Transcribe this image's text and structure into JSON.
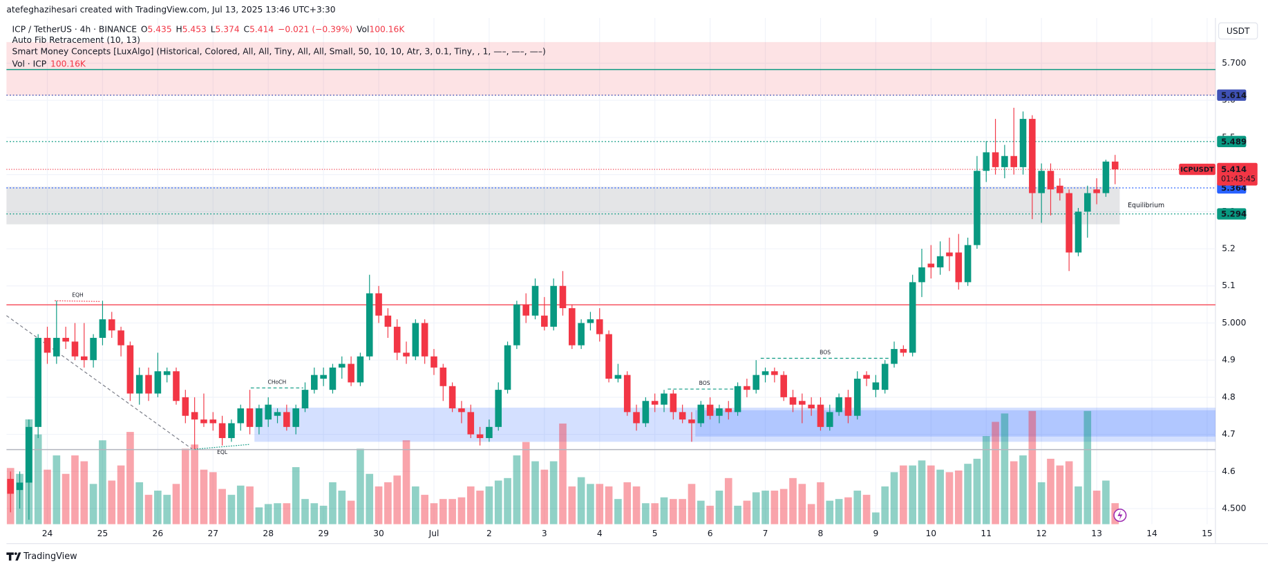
{
  "header": {
    "author_line": "atefeghazihesari created with TradingView.com, Jul 13, 2025 13:46 UTC+3:30",
    "symbol": "ICP / TetherUS · 4h · BINANCE",
    "o_label": "O",
    "h_label": "H",
    "l_label": "L",
    "c_label": "C",
    "change": "−0.021 (−0.39%)",
    "vol_label": "Vol",
    "vol_value": "100.16K",
    "indicators": [
      "Auto Fib Retracement (10, 13)",
      "Smart Money Concepts [LuxAlgo] (Historical, Colored, All, All, Tiny, All, All, Small, 50, 10, 10, Atr, 3, 0.1, Tiny, , 1, —–, —–, —–)"
    ],
    "vol_indicator": "Vol · ICP",
    "vol_indicator_value": "100.16K"
  },
  "chart_data": {
    "type": "candlestick",
    "currency": "USDT",
    "up_color": "#089981",
    "down_color": "#f23645",
    "open": [
      4.58,
      4.55,
      4.57,
      4.72,
      4.96,
      4.91,
      4.96,
      4.95,
      4.91,
      4.9,
      4.96,
      5.01,
      4.98,
      4.94,
      4.81,
      4.86,
      4.81,
      4.86,
      4.87,
      4.8,
      4.76,
      4.74,
      4.74,
      4.73,
      4.69,
      4.73,
      4.77,
      4.72,
      4.74,
      4.75,
      4.76,
      4.72,
      4.77,
      4.82,
      4.85,
      4.82,
      4.88,
      4.89,
      4.84,
      4.91,
      5.08,
      5.02,
      4.99,
      4.92,
      4.91,
      5.0,
      4.91,
      4.88,
      4.83,
      4.77,
      4.76,
      4.7,
      4.69,
      4.72,
      4.82,
      4.94,
      5.05,
      5.02,
      5.02,
      4.99,
      5.1,
      5.04,
      4.94,
      5.0,
      5.01,
      4.97,
      4.85,
      4.86,
      4.76,
      4.73,
      4.79,
      4.78,
      4.81,
      4.76,
      4.74,
      4.73,
      4.78,
      4.75,
      4.77,
      4.76,
      4.83,
      4.82,
      4.86,
      4.87,
      4.86,
      4.8,
      4.79,
      4.78,
      4.78,
      4.72,
      4.76,
      4.8,
      4.75,
      4.86,
      4.82,
      4.82,
      4.89,
      4.93,
      4.92,
      5.11,
      5.16,
      5.15,
      5.19,
      5.19,
      5.11,
      5.21,
      5.41,
      5.46,
      5.42,
      5.45,
      5.42,
      5.55,
      5.35,
      5.41,
      5.37,
      5.35,
      5.19,
      5.3,
      5.36,
      5.35,
      5.435
    ],
    "high": [
      4.6,
      4.6,
      4.74,
      4.97,
      4.99,
      5.06,
      4.99,
      5.0,
      5.0,
      4.97,
      5.06,
      5.03,
      4.99,
      4.95,
      4.88,
      4.88,
      4.92,
      4.88,
      4.88,
      4.82,
      4.8,
      4.81,
      4.76,
      4.75,
      4.74,
      4.78,
      4.82,
      4.78,
      4.8,
      4.77,
      4.78,
      4.78,
      4.84,
      4.88,
      4.88,
      4.89,
      4.91,
      4.91,
      4.92,
      5.13,
      5.1,
      5.04,
      5.01,
      4.95,
      5.01,
      5.01,
      4.93,
      4.89,
      4.84,
      4.79,
      4.78,
      4.72,
      4.74,
      4.84,
      4.95,
      5.06,
      5.08,
      5.12,
      5.07,
      5.12,
      5.14,
      5.05,
      5.01,
      5.03,
      5.04,
      4.98,
      4.89,
      4.87,
      4.78,
      4.8,
      4.81,
      4.82,
      4.82,
      4.78,
      4.76,
      4.79,
      4.8,
      4.78,
      4.79,
      4.84,
      4.85,
      4.9,
      4.88,
      4.88,
      4.87,
      4.82,
      4.81,
      4.8,
      4.8,
      4.78,
      4.81,
      4.82,
      4.87,
      4.87,
      4.86,
      4.9,
      4.95,
      4.94,
      5.13,
      5.2,
      5.21,
      5.22,
      5.23,
      5.24,
      5.23,
      5.45,
      5.49,
      5.55,
      5.48,
      5.58,
      5.57,
      5.56,
      5.43,
      5.43,
      5.39,
      5.36,
      5.31,
      5.37,
      5.39,
      5.44,
      5.453
    ],
    "low": [
      4.49,
      4.5,
      4.47,
      4.69,
      4.89,
      4.89,
      4.93,
      4.9,
      4.88,
      4.88,
      4.94,
      4.96,
      4.91,
      4.79,
      4.78,
      4.79,
      4.8,
      4.84,
      4.78,
      4.73,
      4.66,
      4.72,
      4.71,
      4.67,
      4.68,
      4.71,
      4.7,
      4.7,
      4.72,
      4.73,
      4.71,
      4.7,
      4.76,
      4.81,
      4.83,
      4.81,
      4.85,
      4.83,
      4.83,
      4.9,
      5.0,
      4.96,
      4.9,
      4.89,
      4.9,
      4.89,
      4.86,
      4.79,
      4.76,
      4.73,
      4.69,
      4.67,
      4.68,
      4.71,
      4.81,
      4.93,
      5.0,
      5.01,
      4.98,
      4.98,
      5.02,
      4.93,
      4.93,
      4.98,
      4.95,
      4.84,
      4.84,
      4.75,
      4.71,
      4.72,
      4.76,
      4.76,
      4.74,
      4.73,
      4.68,
      4.72,
      4.74,
      4.73,
      4.74,
      4.75,
      4.8,
      4.81,
      4.84,
      4.84,
      4.79,
      4.76,
      4.73,
      4.75,
      4.71,
      4.71,
      4.75,
      4.73,
      4.74,
      4.83,
      4.8,
      4.81,
      4.88,
      4.91,
      4.91,
      5.07,
      5.12,
      5.13,
      5.14,
      5.09,
      5.1,
      5.2,
      5.38,
      5.4,
      5.39,
      5.4,
      5.4,
      5.28,
      5.27,
      5.29,
      5.33,
      5.14,
      5.18,
      5.23,
      5.32,
      5.34,
      5.374
    ],
    "close": [
      4.54,
      4.57,
      4.72,
      4.96,
      4.92,
      4.96,
      4.95,
      4.91,
      4.9,
      4.96,
      5.01,
      4.98,
      4.94,
      4.81,
      4.86,
      4.81,
      4.87,
      4.87,
      4.79,
      4.75,
      4.74,
      4.73,
      4.73,
      4.69,
      4.73,
      4.77,
      4.72,
      4.77,
      4.78,
      4.76,
      4.72,
      4.77,
      4.82,
      4.86,
      4.86,
      4.88,
      4.89,
      4.84,
      4.91,
      5.08,
      5.02,
      4.99,
      4.92,
      4.91,
      5.0,
      4.91,
      4.88,
      4.83,
      4.77,
      4.76,
      4.7,
      4.69,
      4.72,
      4.82,
      4.94,
      5.05,
      5.02,
      5.1,
      4.99,
      5.1,
      5.04,
      4.94,
      5.0,
      5.01,
      4.97,
      4.85,
      4.86,
      4.76,
      4.73,
      4.79,
      4.78,
      4.81,
      4.76,
      4.74,
      4.73,
      4.78,
      4.75,
      4.77,
      4.76,
      4.83,
      4.82,
      4.86,
      4.87,
      4.86,
      4.8,
      4.78,
      4.78,
      4.77,
      4.72,
      4.76,
      4.8,
      4.75,
      4.85,
      4.85,
      4.84,
      4.89,
      4.93,
      4.92,
      5.11,
      5.15,
      5.15,
      5.18,
      5.18,
      5.11,
      5.21,
      5.41,
      5.46,
      5.42,
      5.45,
      5.42,
      5.55,
      5.35,
      5.41,
      5.36,
      5.35,
      5.19,
      5.3,
      5.35,
      5.35,
      5.435,
      5.414
    ],
    "volume": [
      268,
      240,
      500,
      428,
      260,
      328,
      240,
      328,
      300,
      192,
      400,
      208,
      280,
      440,
      200,
      140,
      160,
      140,
      192,
      360,
      380,
      260,
      248,
      168,
      140,
      184,
      180,
      80,
      96,
      100,
      100,
      272,
      120,
      100,
      88,
      200,
      160,
      112,
      360,
      240,
      180,
      200,
      232,
      400,
      180,
      140,
      100,
      120,
      120,
      128,
      180,
      160,
      180,
      208,
      220,
      328,
      392,
      300,
      260,
      300,
      480,
      180,
      224,
      192,
      192,
      180,
      120,
      200,
      180,
      100,
      100,
      128,
      120,
      120,
      192,
      112,
      88,
      160,
      220,
      88,
      112,
      152,
      160,
      160,
      168,
      220,
      192,
      96,
      200,
      112,
      120,
      128,
      160,
      140,
      56,
      180,
      248,
      280,
      280,
      304,
      280,
      260,
      248,
      256,
      288,
      312,
      420,
      488,
      528,
      300,
      328,
      540,
      200,
      312,
      280,
      300,
      180,
      540,
      160,
      208,
      100.16
    ],
    "xlim": [
      -0.44,
      130.9
    ],
    "xticks": [
      {
        "value": 4,
        "label": "24"
      },
      {
        "value": 10,
        "label": "25"
      },
      {
        "value": 16,
        "label": "26"
      },
      {
        "value": 22,
        "label": "27"
      },
      {
        "value": 28,
        "label": "28"
      },
      {
        "value": 34,
        "label": "29"
      },
      {
        "value": 40,
        "label": "30"
      },
      {
        "value": 46,
        "label": "Jul"
      },
      {
        "value": 52,
        "label": "2"
      },
      {
        "value": 58,
        "label": "3"
      },
      {
        "value": 64,
        "label": "4"
      },
      {
        "value": 70,
        "label": "5"
      },
      {
        "value": 76,
        "label": "6"
      },
      {
        "value": 82,
        "label": "7"
      },
      {
        "value": 88,
        "label": "8"
      },
      {
        "value": 94,
        "label": "9"
      },
      {
        "value": 100,
        "label": "10"
      },
      {
        "value": 106,
        "label": "11"
      },
      {
        "value": 112,
        "label": "12"
      },
      {
        "value": 118,
        "label": "13"
      },
      {
        "value": 124,
        "label": "14"
      },
      {
        "value": 130,
        "label": "15"
      }
    ],
    "ylim": [
      4.458,
      5.822
    ],
    "yticks": [
      {
        "value": 4.5,
        "label": "4.500"
      },
      4.6,
      4.7,
      4.8,
      4.9,
      {
        "value": 5,
        "label": "5.000"
      },
      5.1,
      5.2,
      5.3,
      5.4,
      5.5,
      5.6,
      {
        "value": 5.7,
        "label": "5.700"
      }
    ],
    "grid": true,
    "zones": [
      {
        "y": [
          5.613,
          5.757
        ],
        "x": [
          -0.44,
          130.9
        ],
        "color": "rgba(242,54,69,0.14)"
      },
      {
        "y": [
          5.266,
          5.367
        ],
        "x": [
          -0.44,
          120.5
        ],
        "color": "rgba(120,123,134,0.2)",
        "label": "Equilibrium"
      },
      {
        "y": [
          4.68,
          4.772
        ],
        "x": [
          26.5,
          130.9
        ],
        "color": "rgba(41,98,255,0.2)"
      },
      {
        "y": [
          4.694,
          4.765
        ],
        "x": [
          74.4,
          130.9
        ],
        "color": "rgba(41,98,255,0.2)"
      }
    ],
    "lines": [
      {
        "value": 5.683,
        "color": "#089981"
      },
      {
        "value": 5.049,
        "color": "#f7525f"
      },
      {
        "value": 4.659,
        "color": "#b2b5be"
      }
    ],
    "price_levels": [
      {
        "value": 5.614,
        "color": "#3f51b5"
      },
      {
        "value": 5.489,
        "color": "#089981"
      },
      {
        "value": 5.364,
        "color": "#2962ff"
      },
      {
        "value": 5.294,
        "color": "#089981"
      }
    ],
    "structures": [
      {
        "label": "EQH",
        "x": [
          4.8,
          9.8
        ],
        "y": [
          5.06,
          5.058
        ],
        "color": "#f23645",
        "style": "dotted",
        "position": "above"
      },
      {
        "label": "EQL",
        "x": [
          20,
          26
        ],
        "y": [
          4.66,
          4.673
        ],
        "color": "#089981",
        "style": "dotted",
        "position": "below"
      },
      {
        "label": "CHoCH",
        "x": [
          26.1,
          31.8
        ],
        "y": [
          4.825,
          4.825
        ],
        "color": "#089981",
        "style": "dashed",
        "position": "above"
      },
      {
        "label": "BOS",
        "x": [
          71.4,
          79.4
        ],
        "y": [
          4.822,
          4.822
        ],
        "color": "#089981",
        "style": "dashed",
        "position": "above"
      },
      {
        "label": "BOS",
        "x": [
          81.5,
          95.5
        ],
        "y": [
          4.905,
          4.905
        ],
        "color": "#089981",
        "style": "dashed",
        "position": "above"
      },
      {
        "x": [
          -0.44,
          19.7
        ],
        "y": [
          5.02,
          4.661
        ],
        "color": "#787b86",
        "style": "dashed"
      }
    ],
    "price_tag": {
      "symbol": "ICPUSDT",
      "countdown": "01:43:45",
      "color": "#f23645"
    }
  },
  "footer": {
    "brand": "TradingView"
  }
}
